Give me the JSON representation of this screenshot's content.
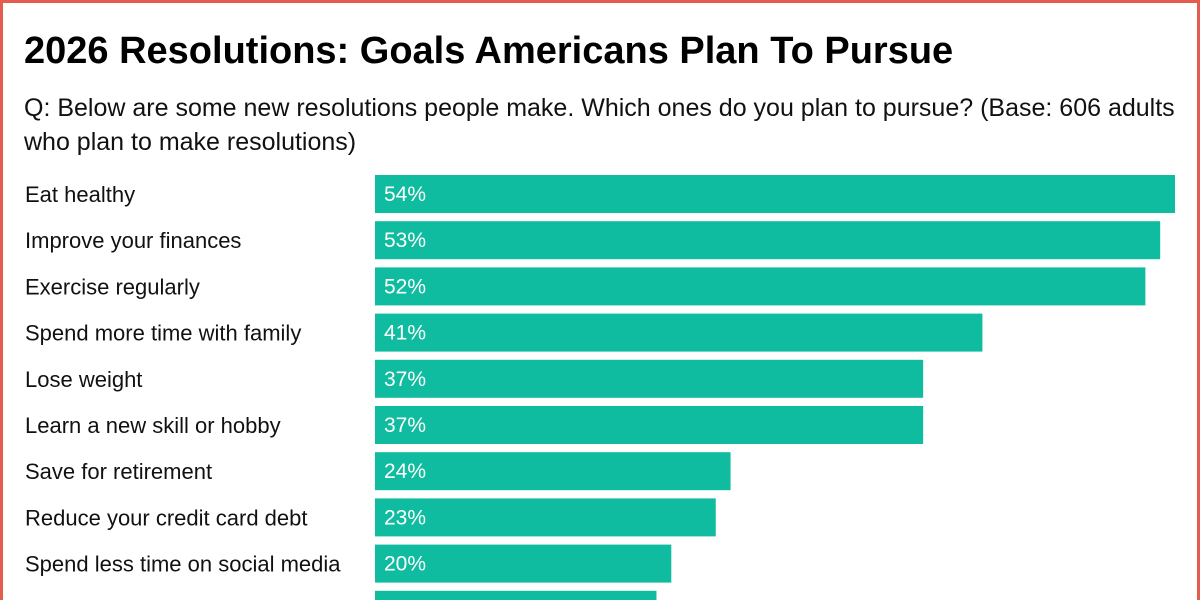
{
  "frame_color": "#e35d4f",
  "title": "2026 Resolutions: Goals Americans Plan To Pursue",
  "subtitle": "Q: Below are some new resolutions people make. Which ones do you plan to pursue? (Base: 606 adults who plan to make resolutions)",
  "chart_data": {
    "type": "bar",
    "orientation": "horizontal",
    "bar_color": "#10bc9f",
    "categories": [
      "Eat healthy",
      "Improve your finances",
      "Exercise regularly",
      "Spend more time with family",
      "Lose weight",
      "Learn a new skill or hobby",
      "Save for retirement",
      "Reduce your credit card debt",
      "Spend less time on social media"
    ],
    "values": [
      54,
      53,
      52,
      41,
      37,
      37,
      24,
      23,
      20
    ],
    "value_labels": [
      "54%",
      "53%",
      "52%",
      "41%",
      "37%",
      "37%",
      "24%",
      "23%",
      "20%"
    ],
    "unit": "%",
    "partially_visible_next_bar_value": 19
  }
}
